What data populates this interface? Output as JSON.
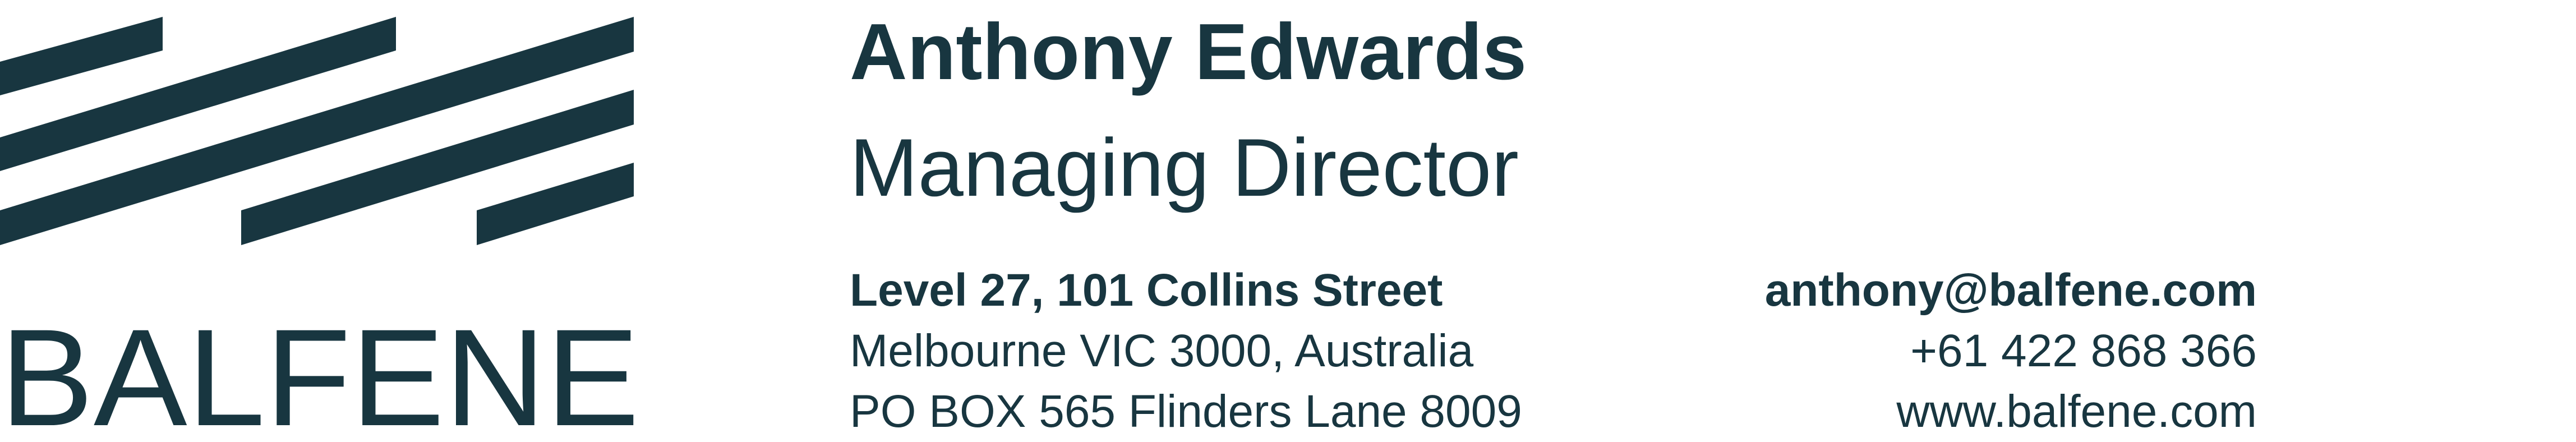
{
  "brand": {
    "logo_text": "BALFENE",
    "color": "#183640"
  },
  "person": {
    "name": "Anthony Edwards",
    "title": "Managing Director"
  },
  "address": {
    "line1": "Level 27, 101 Collins Street",
    "line2": "Melbourne VIC 3000, Australia",
    "line3": "PO BOX 565 Flinders Lane 8009"
  },
  "contact": {
    "email": "anthony@balfene.com",
    "phone": "+61 422 868 366",
    "website": "www.balfene.com"
  }
}
